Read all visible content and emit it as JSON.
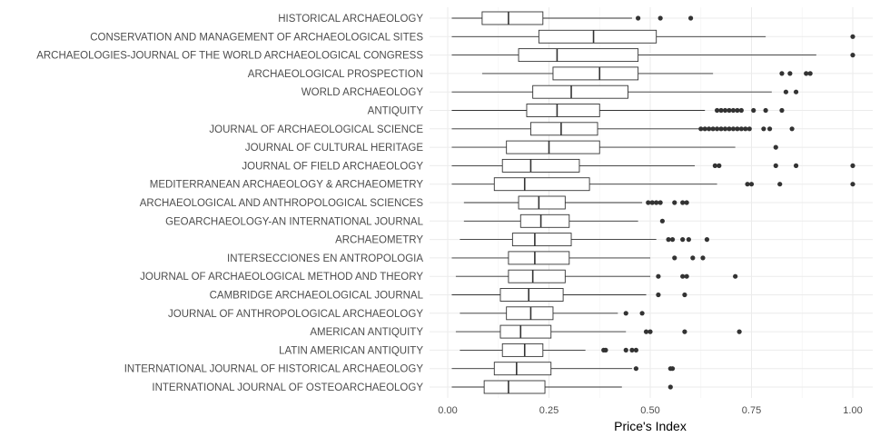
{
  "chart_data": {
    "type": "boxplot",
    "orientation": "horizontal",
    "xlabel": "Price's Index",
    "xlim": [
      0,
      1
    ],
    "xticks": [
      0,
      0.25,
      0.5,
      0.75,
      1
    ],
    "xtick_labels": [
      "0.00",
      "0.25",
      "0.50",
      "0.75",
      "1.00"
    ],
    "grid": true,
    "categories": [
      {
        "name": "HISTORICAL ARCHAEOLOGY",
        "whisker_low": 0.01,
        "q1": 0.085,
        "median": 0.15,
        "q3": 0.235,
        "whisker_high": 0.455,
        "outliers": [
          0.47,
          0.525,
          0.6
        ]
      },
      {
        "name": "CONSERVATION AND MANAGEMENT OF ARCHAEOLOGICAL SITES",
        "whisker_low": 0.01,
        "q1": 0.225,
        "median": 0.36,
        "q3": 0.515,
        "whisker_high": 0.785,
        "outliers": [
          1.0
        ]
      },
      {
        "name": "ARCHAEOLOGIES-JOURNAL OF THE WORLD ARCHAEOLOGICAL CONGRESS",
        "whisker_low": 0.01,
        "q1": 0.175,
        "median": 0.27,
        "q3": 0.47,
        "whisker_high": 0.91,
        "outliers": [
          1.0
        ]
      },
      {
        "name": "ARCHAEOLOGICAL PROSPECTION",
        "whisker_low": 0.085,
        "q1": 0.26,
        "median": 0.375,
        "q3": 0.47,
        "whisker_high": 0.655,
        "outliers": [
          0.825,
          0.845,
          0.885,
          0.895
        ]
      },
      {
        "name": "WORLD ARCHAEOLOGY",
        "whisker_low": 0.01,
        "q1": 0.21,
        "median": 0.305,
        "q3": 0.445,
        "whisker_high": 0.8,
        "outliers": [
          0.835,
          0.86
        ]
      },
      {
        "name": "ANTIQUITY",
        "whisker_low": 0.01,
        "q1": 0.195,
        "median": 0.27,
        "q3": 0.375,
        "whisker_high": 0.635,
        "outliers": [
          0.665,
          0.675,
          0.685,
          0.695,
          0.705,
          0.715,
          0.725,
          0.755,
          0.785,
          0.825
        ]
      },
      {
        "name": "JOURNAL OF ARCHAEOLOGICAL SCIENCE",
        "whisker_low": 0.01,
        "q1": 0.205,
        "median": 0.28,
        "q3": 0.37,
        "whisker_high": 0.62,
        "outliers": [
          0.625,
          0.635,
          0.645,
          0.655,
          0.665,
          0.675,
          0.685,
          0.695,
          0.705,
          0.715,
          0.725,
          0.735,
          0.745,
          0.78,
          0.795,
          0.85
        ]
      },
      {
        "name": "JOURNAL OF CULTURAL HERITAGE",
        "whisker_low": 0.01,
        "q1": 0.145,
        "median": 0.25,
        "q3": 0.375,
        "whisker_high": 0.71,
        "outliers": [
          0.81
        ]
      },
      {
        "name": "JOURNAL OF FIELD ARCHAEOLOGY",
        "whisker_low": 0.01,
        "q1": 0.135,
        "median": 0.205,
        "q3": 0.325,
        "whisker_high": 0.61,
        "outliers": [
          0.66,
          0.67,
          0.81,
          0.86,
          1.0
        ]
      },
      {
        "name": "MEDITERRANEAN ARCHAEOLOGY & ARCHAEOMETRY",
        "whisker_low": 0.01,
        "q1": 0.115,
        "median": 0.19,
        "q3": 0.35,
        "whisker_high": 0.665,
        "outliers": [
          0.74,
          0.75,
          0.82,
          1.0
        ]
      },
      {
        "name": "ARCHAEOLOGICAL AND ANTHROPOLOGICAL SCIENCES",
        "whisker_low": 0.04,
        "q1": 0.175,
        "median": 0.225,
        "q3": 0.29,
        "whisker_high": 0.48,
        "outliers": [
          0.495,
          0.505,
          0.515,
          0.525,
          0.56,
          0.58,
          0.59
        ]
      },
      {
        "name": "GEOARCHAEOLOGY-AN INTERNATIONAL JOURNAL",
        "whisker_low": 0.04,
        "q1": 0.18,
        "median": 0.23,
        "q3": 0.3,
        "whisker_high": 0.47,
        "outliers": [
          0.53
        ]
      },
      {
        "name": "ARCHAEOMETRY",
        "whisker_low": 0.03,
        "q1": 0.16,
        "median": 0.215,
        "q3": 0.305,
        "whisker_high": 0.515,
        "outliers": [
          0.545,
          0.555,
          0.58,
          0.595,
          0.64
        ]
      },
      {
        "name": "INTERSECCIONES EN ANTROPOLOGIA",
        "whisker_low": 0.01,
        "q1": 0.15,
        "median": 0.215,
        "q3": 0.3,
        "whisker_high": 0.5,
        "outliers": [
          0.56,
          0.605,
          0.63
        ]
      },
      {
        "name": "JOURNAL OF ARCHAEOLOGICAL METHOD AND THEORY",
        "whisker_low": 0.02,
        "q1": 0.15,
        "median": 0.21,
        "q3": 0.29,
        "whisker_high": 0.5,
        "outliers": [
          0.52,
          0.58,
          0.59,
          0.71
        ]
      },
      {
        "name": "CAMBRIDGE ARCHAEOLOGICAL JOURNAL",
        "whisker_low": 0.01,
        "q1": 0.13,
        "median": 0.2,
        "q3": 0.285,
        "whisker_high": 0.49,
        "outliers": [
          0.52,
          0.585
        ]
      },
      {
        "name": "JOURNAL OF ANTHROPOLOGICAL ARCHAEOLOGY",
        "whisker_low": 0.03,
        "q1": 0.145,
        "median": 0.205,
        "q3": 0.26,
        "whisker_high": 0.42,
        "outliers": [
          0.44,
          0.48
        ]
      },
      {
        "name": "AMERICAN ANTIQUITY",
        "whisker_low": 0.02,
        "q1": 0.13,
        "median": 0.18,
        "q3": 0.255,
        "whisker_high": 0.44,
        "outliers": [
          0.49,
          0.5,
          0.585,
          0.72
        ]
      },
      {
        "name": "LATIN AMERICAN ANTIQUITY",
        "whisker_low": 0.03,
        "q1": 0.135,
        "median": 0.19,
        "q3": 0.235,
        "whisker_high": 0.34,
        "outliers": [
          0.385,
          0.39,
          0.44,
          0.455,
          0.465
        ]
      },
      {
        "name": "INTERNATIONAL JOURNAL OF HISTORICAL ARCHAEOLOGY",
        "whisker_low": 0.01,
        "q1": 0.115,
        "median": 0.17,
        "q3": 0.255,
        "whisker_high": 0.455,
        "outliers": [
          0.465,
          0.55,
          0.555
        ]
      },
      {
        "name": "INTERNATIONAL JOURNAL OF OSTEOARCHAEOLOGY",
        "whisker_low": 0.01,
        "q1": 0.09,
        "median": 0.15,
        "q3": 0.24,
        "whisker_high": 0.43,
        "outliers": [
          0.55
        ]
      }
    ]
  }
}
